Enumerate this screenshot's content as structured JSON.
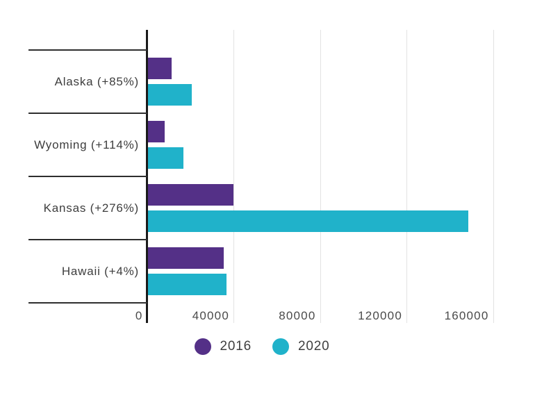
{
  "chart_data": {
    "type": "bar",
    "orientation": "horizontal",
    "title": "",
    "categories": [
      "Alaska (+85%)",
      "Wyoming (+114%)",
      "Kansas (+276%)",
      "Hawaii (+4%)"
    ],
    "series": [
      {
        "name": "2016",
        "color": "#543087",
        "values": [
          11000,
          7700,
          39400,
          35000
        ]
      },
      {
        "name": "2020",
        "color": "#20b2ca",
        "values": [
          20400,
          16500,
          148100,
          36400
        ]
      }
    ],
    "x_axis": {
      "min": 0,
      "max": 160000,
      "ticks": [
        0,
        40000,
        80000,
        120000,
        160000
      ],
      "tick_labels": [
        "0",
        "40000",
        "80000",
        "120000",
        "160000"
      ]
    },
    "grid": "vertical",
    "legend": {
      "position": "bottom",
      "entries": [
        "2016",
        "2020"
      ]
    },
    "colors": {
      "axis_line": "#1a1a1a",
      "row_divider": "#2e2e2e",
      "gridline": "#e2e2e2",
      "tick_text": "#4a4a4a",
      "category_text": "#3d3d3d",
      "legend_text": "#3f3f3f",
      "background": "#ffffff"
    }
  }
}
